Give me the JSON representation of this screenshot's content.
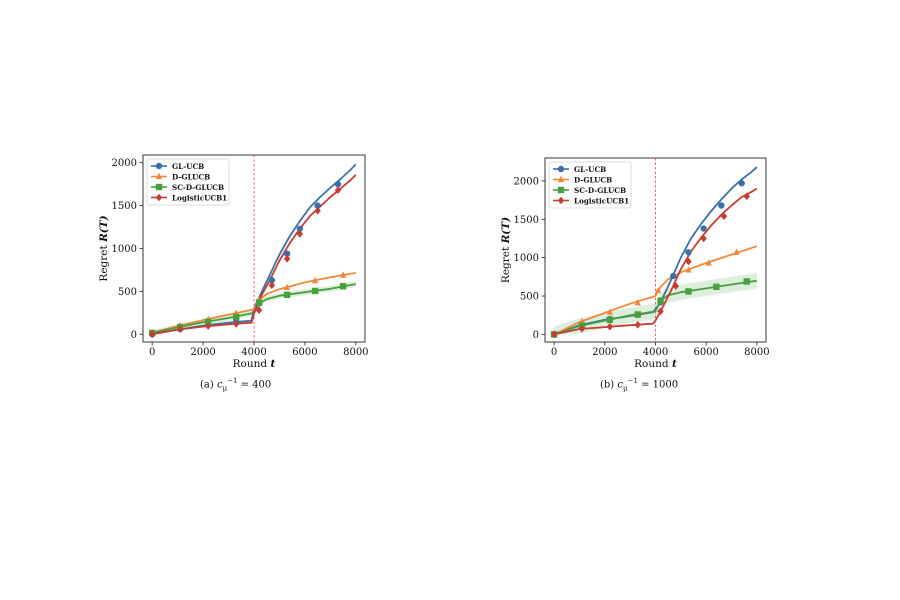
{
  "chart_data": [
    {
      "type": "line",
      "title": "",
      "xlabel": "Round",
      "xlabel_var": "t",
      "ylabel": "Regret",
      "ylabel_var": "R(T)",
      "xlim": [
        0,
        8000
      ],
      "ylim": [
        0,
        2000
      ],
      "xticks": [
        0,
        2000,
        4000,
        6000,
        8000
      ],
      "yticks": [
        0,
        500,
        1000,
        1500,
        2000
      ],
      "vline_x": 4000,
      "legend_position": "top-left",
      "caption": {
        "prefix": "(a)",
        "var": "c",
        "sub": "μ",
        "sup": "−1",
        "value": "= 400"
      },
      "series": [
        {
          "name": "GL-UCB",
          "color": "#3a70a8",
          "marker": "circle",
          "x": [
            0,
            1000,
            2000,
            3000,
            3900,
            4000,
            4200,
            4600,
            5000,
            5400,
            5800,
            6200,
            6600,
            7000,
            7400,
            7800,
            8000
          ],
          "y": [
            0,
            55,
            100,
            135,
            160,
            300,
            430,
            680,
            930,
            1140,
            1320,
            1480,
            1600,
            1710,
            1810,
            1920,
            1980
          ],
          "mx": [
            0,
            1100,
            2200,
            3300,
            4200,
            4700,
            5300,
            5800,
            6500,
            7300
          ],
          "my": [
            0,
            60,
            110,
            145,
            360,
            630,
            940,
            1230,
            1500,
            1750
          ]
        },
        {
          "name": "D-GLUCB",
          "color": "#f0883a",
          "marker": "triangle",
          "x": [
            0,
            1000,
            2000,
            3000,
            4000,
            4200,
            4500,
            5000,
            6000,
            7000,
            8000
          ],
          "y": [
            20,
            95,
            165,
            230,
            290,
            400,
            470,
            525,
            605,
            665,
            715
          ],
          "mx": [
            0,
            1100,
            2200,
            3300,
            4200,
            5300,
            6400,
            7500
          ],
          "my": [
            20,
            100,
            175,
            245,
            400,
            545,
            625,
            690
          ]
        },
        {
          "name": "SC-D-GLUCB",
          "color": "#46a03c",
          "marker": "square",
          "x": [
            0,
            1000,
            2000,
            3000,
            4000,
            4200,
            4500,
            5000,
            6000,
            7000,
            8000
          ],
          "y": [
            15,
            80,
            140,
            190,
            250,
            360,
            410,
            450,
            490,
            530,
            585
          ],
          "band": 35,
          "mx": [
            0,
            1100,
            2200,
            3300,
            4200,
            5300,
            6400,
            7500
          ],
          "my": [
            15,
            85,
            145,
            200,
            370,
            460,
            505,
            560
          ]
        },
        {
          "name": "LogisticUCB1",
          "color": "#c83c32",
          "marker": "diamond",
          "x": [
            0,
            1000,
            2000,
            3000,
            3900,
            4000,
            4200,
            4600,
            5000,
            5400,
            5800,
            6200,
            6600,
            7000,
            7400,
            7800,
            8000
          ],
          "y": [
            0,
            55,
            90,
            115,
            135,
            240,
            400,
            620,
            860,
            1060,
            1230,
            1380,
            1490,
            1600,
            1700,
            1800,
            1860
          ],
          "mx": [
            0,
            1100,
            2200,
            3300,
            4200,
            4700,
            5300,
            5800,
            6500,
            7300
          ],
          "my": [
            0,
            60,
            95,
            120,
            280,
            570,
            880,
            1170,
            1440,
            1680
          ]
        }
      ]
    },
    {
      "type": "line",
      "title": "",
      "xlabel": "Round",
      "xlabel_var": "t",
      "ylabel": "Regret",
      "ylabel_var": "R(T)",
      "xlim": [
        0,
        8000
      ],
      "ylim": [
        0,
        2200
      ],
      "xticks": [
        0,
        2000,
        4000,
        6000,
        8000
      ],
      "yticks": [
        0,
        500,
        1000,
        1500,
        2000
      ],
      "vline_x": 4000,
      "legend_position": "top-left",
      "caption": {
        "prefix": "(b)",
        "var": "c",
        "sub": "μ",
        "sup": "−1",
        "value": "= 1000"
      },
      "series": [
        {
          "name": "GL-UCB",
          "color": "#3a70a8",
          "marker": "circle",
          "x": [
            0,
            1000,
            2000,
            3000,
            3900,
            4000,
            4200,
            4600,
            5000,
            5400,
            5800,
            6200,
            6600,
            7000,
            7400,
            7800,
            8000
          ],
          "y": [
            0,
            120,
            190,
            240,
            290,
            330,
            420,
            700,
            1000,
            1250,
            1440,
            1610,
            1760,
            1900,
            2020,
            2120,
            2180
          ],
          "mx": [
            0,
            1100,
            2200,
            3300,
            4200,
            4700,
            5300,
            5900,
            6600,
            7400
          ],
          "my": [
            0,
            130,
            200,
            255,
            420,
            760,
            1070,
            1380,
            1680,
            1970
          ]
        },
        {
          "name": "D-GLUCB",
          "color": "#f0883a",
          "marker": "triangle",
          "x": [
            0,
            1000,
            2000,
            3000,
            4000,
            4200,
            4500,
            5000,
            6000,
            7000,
            8000
          ],
          "y": [
            0,
            160,
            280,
            400,
            500,
            620,
            720,
            810,
            930,
            1040,
            1150
          ],
          "mx": [
            0,
            1100,
            2200,
            3300,
            4100,
            5300,
            6100,
            7200
          ],
          "my": [
            0,
            165,
            290,
            410,
            570,
            840,
            930,
            1070
          ]
        },
        {
          "name": "SC-D-GLUCB",
          "color": "#46a03c",
          "marker": "square",
          "x": [
            0,
            1000,
            2000,
            3000,
            4000,
            4200,
            4500,
            5000,
            6000,
            7000,
            8000
          ],
          "y": [
            0,
            110,
            180,
            250,
            300,
            440,
            510,
            550,
            600,
            650,
            700
          ],
          "band": 100,
          "mx": [
            0,
            1100,
            2200,
            3300,
            4200,
            5300,
            6400,
            7600
          ],
          "my": [
            0,
            115,
            190,
            260,
            440,
            560,
            620,
            690
          ]
        },
        {
          "name": "LogisticUCB1",
          "color": "#c83c32",
          "marker": "diamond",
          "x": [
            0,
            1000,
            2000,
            3000,
            3900,
            4000,
            4200,
            4600,
            5000,
            5400,
            5800,
            6200,
            6600,
            7000,
            7400,
            7800,
            8000
          ],
          "y": [
            0,
            70,
            95,
            120,
            140,
            180,
            300,
            560,
            850,
            1080,
            1260,
            1420,
            1560,
            1680,
            1790,
            1860,
            1900
          ],
          "mx": [
            0,
            1100,
            2200,
            3300,
            4200,
            4800,
            5300,
            5900,
            6700,
            7600
          ],
          "my": [
            0,
            75,
            100,
            125,
            300,
            630,
            950,
            1250,
            1540,
            1800
          ]
        }
      ]
    }
  ]
}
